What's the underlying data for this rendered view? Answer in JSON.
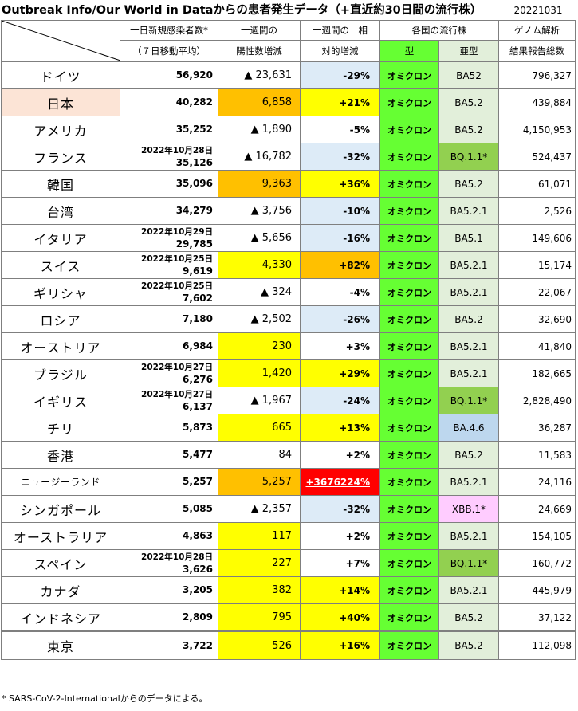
{
  "title": "Outbreak Info/Our World in Dataからの患者発生データ（+直近約30日間の流行株）",
  "date": "20221031",
  "headers": {
    "new_cases_1": "一日新規感染者数*",
    "new_cases_2": "（７日移動平均）",
    "weekly_1": "一週間の",
    "weekly_2": "陽性数増減",
    "relative_1": "一週間の　相",
    "relative_2": "対的増減",
    "strain": "各国の流行株",
    "type": "型",
    "subtype": "亜型",
    "genome_1": "ゲノム解析",
    "genome_2": "結果報告総数"
  },
  "rows": [
    {
      "name": "ドイツ",
      "date": "",
      "new": "56,920",
      "inc": "▲ 23,631",
      "pct": "-29%",
      "type": "オミクロン",
      "sub": "BA52",
      "genome": "796,327",
      "name_bg": "#ffffff",
      "inc_bg": "#ffffff",
      "pct_bg": "#ddebf7",
      "sub_bg": "#e2efda",
      "pct_color": "#000000"
    },
    {
      "name": "日本",
      "date": "",
      "new": "40,282",
      "inc": "6,858",
      "pct": "+21%",
      "type": "オミクロン",
      "sub": "BA5.2",
      "genome": "439,884",
      "name_bg": "#fce4d6",
      "inc_bg": "#ffc000",
      "pct_bg": "#ffff00",
      "sub_bg": "#e2efda",
      "pct_color": "#000000"
    },
    {
      "name": "アメリカ",
      "date": "",
      "new": "35,252",
      "inc": "▲ 1,890",
      "pct": "-5%",
      "type": "オミクロン",
      "sub": "BA5.2",
      "genome": "4,150,953",
      "name_bg": "#ffffff",
      "inc_bg": "#ffffff",
      "pct_bg": "#ffffff",
      "sub_bg": "#e2efda",
      "pct_color": "#000000"
    },
    {
      "name": "フランス",
      "date": "2022年10月28日",
      "new": "35,126",
      "inc": "▲ 16,782",
      "pct": "-32%",
      "type": "オミクロン",
      "sub": "BQ.1.1*",
      "genome": "524,437",
      "name_bg": "#ffffff",
      "inc_bg": "#ffffff",
      "pct_bg": "#ddebf7",
      "sub_bg": "#92d050",
      "pct_color": "#000000"
    },
    {
      "name": "韓国",
      "date": "",
      "new": "35,096",
      "inc": "9,363",
      "pct": "+36%",
      "type": "オミクロン",
      "sub": "BA5.2",
      "genome": "61,071",
      "name_bg": "#ffffff",
      "inc_bg": "#ffc000",
      "pct_bg": "#ffff00",
      "sub_bg": "#e2efda",
      "pct_color": "#000000"
    },
    {
      "name": "台湾",
      "date": "",
      "new": "34,279",
      "inc": "▲ 3,756",
      "pct": "-10%",
      "type": "オミクロン",
      "sub": "BA5.2.1",
      "genome": "2,526",
      "name_bg": "#ffffff",
      "inc_bg": "#ffffff",
      "pct_bg": "#ddebf7",
      "sub_bg": "#e2efda",
      "pct_color": "#000000"
    },
    {
      "name": "イタリア",
      "date": "2022年10月29日",
      "new": "29,785",
      "inc": "▲ 5,656",
      "pct": "-16%",
      "type": "オミクロン",
      "sub": "BA5.1",
      "genome": "149,606",
      "name_bg": "#ffffff",
      "inc_bg": "#ffffff",
      "pct_bg": "#ddebf7",
      "sub_bg": "#e2efda",
      "pct_color": "#000000"
    },
    {
      "name": "スイス",
      "date": "2022年10月25日",
      "new": "9,619",
      "inc": "4,330",
      "pct": "+82%",
      "type": "オミクロン",
      "sub": "BA5.2.1",
      "genome": "15,174",
      "name_bg": "#ffffff",
      "inc_bg": "#ffff00",
      "pct_bg": "#ffc000",
      "sub_bg": "#e2efda",
      "pct_color": "#000000"
    },
    {
      "name": "ギリシャ",
      "date": "2022年10月25日",
      "new": "7,602",
      "inc": "▲ 324",
      "pct": "-4%",
      "type": "オミクロン",
      "sub": "BA5.2.1",
      "genome": "22,067",
      "name_bg": "#ffffff",
      "inc_bg": "#ffffff",
      "pct_bg": "#ffffff",
      "sub_bg": "#e2efda",
      "pct_color": "#000000"
    },
    {
      "name": "ロシア",
      "date": "",
      "new": "7,180",
      "inc": "▲ 2,502",
      "pct": "-26%",
      "type": "オミクロン",
      "sub": "BA5.2",
      "genome": "32,690",
      "name_bg": "#ffffff",
      "inc_bg": "#ffffff",
      "pct_bg": "#ddebf7",
      "sub_bg": "#e2efda",
      "pct_color": "#000000"
    },
    {
      "name": "オーストリア",
      "date": "",
      "new": "6,984",
      "inc": "230",
      "pct": "+3%",
      "type": "オミクロン",
      "sub": "BA5.2.1",
      "genome": "41,840",
      "name_bg": "#ffffff",
      "inc_bg": "#ffff00",
      "pct_bg": "#ffffff",
      "sub_bg": "#e2efda",
      "pct_color": "#000000"
    },
    {
      "name": "ブラジル",
      "date": "2022年10月27日",
      "new": "6,276",
      "inc": "1,420",
      "pct": "+29%",
      "type": "オミクロン",
      "sub": "BA5.2.1",
      "genome": "182,665",
      "name_bg": "#ffffff",
      "inc_bg": "#ffff00",
      "pct_bg": "#ffff00",
      "sub_bg": "#e2efda",
      "pct_color": "#000000"
    },
    {
      "name": "イギリス",
      "date": "2022年10月27日",
      "new": "6,137",
      "inc": "▲ 1,967",
      "pct": "-24%",
      "type": "オミクロン",
      "sub": "BQ.1.1*",
      "genome": "2,828,490",
      "name_bg": "#ffffff",
      "inc_bg": "#ffffff",
      "pct_bg": "#ddebf7",
      "sub_bg": "#92d050",
      "pct_color": "#000000"
    },
    {
      "name": "チリ",
      "date": "",
      "new": "5,873",
      "inc": "665",
      "pct": "+13%",
      "type": "オミクロン",
      "sub": "BA.4.6",
      "genome": "36,287",
      "name_bg": "#ffffff",
      "inc_bg": "#ffff00",
      "pct_bg": "#ffff00",
      "sub_bg": "#bdd7ee",
      "pct_color": "#000000"
    },
    {
      "name": "香港",
      "date": "",
      "new": "5,477",
      "inc": "84",
      "pct": "+2%",
      "type": "オミクロン",
      "sub": "BA5.2",
      "genome": "11,583",
      "name_bg": "#ffffff",
      "inc_bg": "#ffffff",
      "pct_bg": "#ffffff",
      "sub_bg": "#e2efda",
      "pct_color": "#000000"
    },
    {
      "name": "ニュージーランド",
      "date": "",
      "new": "5,257",
      "inc": "5,257",
      "pct": "+3676224%",
      "type": "オミクロン",
      "sub": "BA5.2.1",
      "genome": "24,116",
      "name_bg": "#ffffff",
      "inc_bg": "#ffc000",
      "pct_bg": "#ff0000",
      "sub_bg": "#e2efda",
      "pct_color": "#ffffff",
      "small": true
    },
    {
      "name": "シンガポール",
      "date": "",
      "new": "5,085",
      "inc": "▲ 2,357",
      "pct": "-32%",
      "type": "オミクロン",
      "sub": "XBB.1*",
      "genome": "24,669",
      "name_bg": "#ffffff",
      "inc_bg": "#ffffff",
      "pct_bg": "#ddebf7",
      "sub_bg": "#ffccff",
      "pct_color": "#000000"
    },
    {
      "name": "オーストラリア",
      "date": "",
      "new": "4,863",
      "inc": "117",
      "pct": "+2%",
      "type": "オミクロン",
      "sub": "BA5.2.1",
      "genome": "154,105",
      "name_bg": "#ffffff",
      "inc_bg": "#ffff00",
      "pct_bg": "#ffffff",
      "sub_bg": "#e2efda",
      "pct_color": "#000000"
    },
    {
      "name": "スペイン",
      "date": "2022年10月28日",
      "new": "3,626",
      "inc": "227",
      "pct": "+7%",
      "type": "オミクロン",
      "sub": "BQ.1.1*",
      "genome": "160,772",
      "name_bg": "#ffffff",
      "inc_bg": "#ffff00",
      "pct_bg": "#ffffff",
      "sub_bg": "#92d050",
      "pct_color": "#000000"
    },
    {
      "name": "カナダ",
      "date": "",
      "new": "3,205",
      "inc": "382",
      "pct": "+14%",
      "type": "オミクロン",
      "sub": "BA5.2.1",
      "genome": "445,979",
      "name_bg": "#ffffff",
      "inc_bg": "#ffff00",
      "pct_bg": "#ffff00",
      "sub_bg": "#e2efda",
      "pct_color": "#000000"
    },
    {
      "name": "インドネシア",
      "date": "",
      "new": "2,809",
      "inc": "795",
      "pct": "+40%",
      "type": "オミクロン",
      "sub": "BA5.2",
      "genome": "37,122",
      "name_bg": "#ffffff",
      "inc_bg": "#ffff00",
      "pct_bg": "#ffff00",
      "sub_bg": "#e2efda",
      "pct_color": "#000000"
    },
    {
      "name": "東京",
      "date": "",
      "new": "3,722",
      "inc": "526",
      "pct": "+16%",
      "type": "オミクロン",
      "sub": "BA5.2",
      "genome": "112,098",
      "name_bg": "#ffffff",
      "inc_bg": "#ffff00",
      "pct_bg": "#ffff00",
      "sub_bg": "#e2efda",
      "pct_color": "#000000"
    }
  ],
  "footer": "* SARS-CoV-2-Internationalからのデータによる。"
}
